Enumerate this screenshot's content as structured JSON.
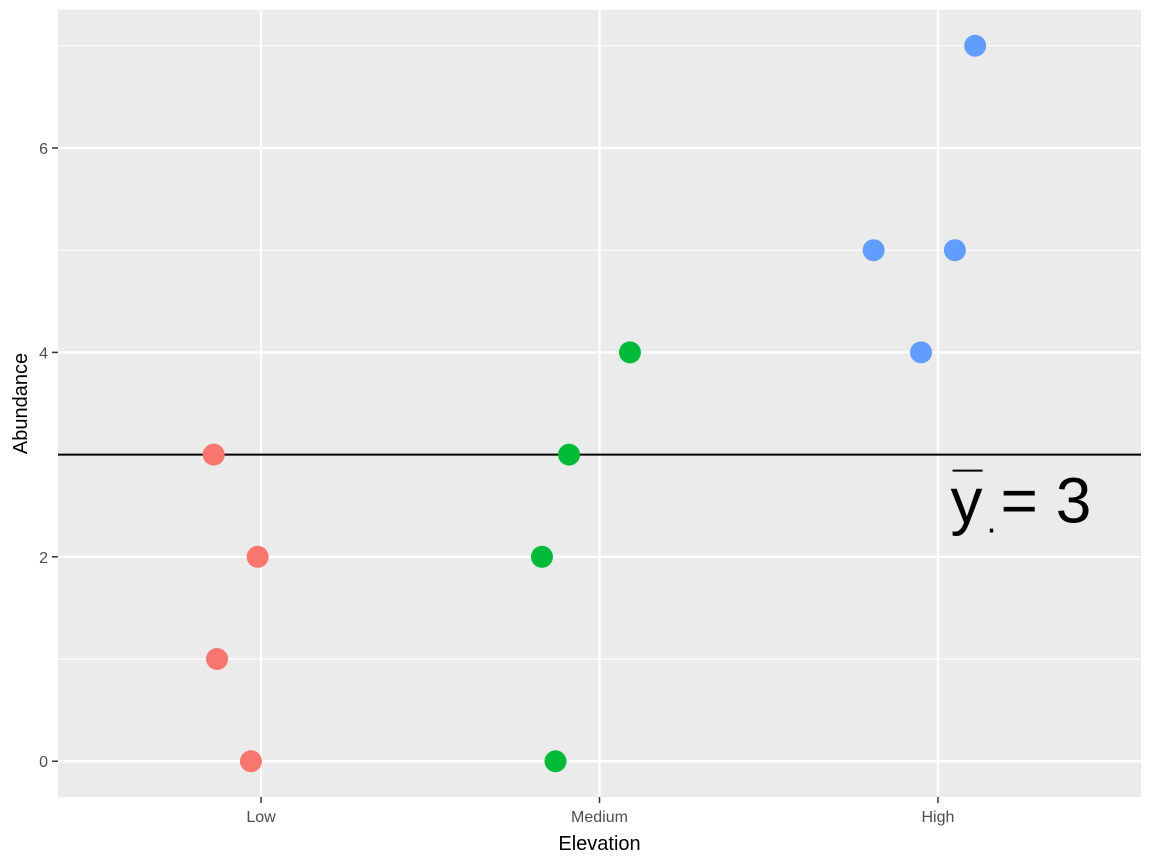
{
  "chart_data": {
    "type": "scatter",
    "title": "",
    "xlabel": "Elevation",
    "ylabel": "Abundance",
    "categories": [
      "Low",
      "Medium",
      "High"
    ],
    "xlim": [
      0.4,
      3.6
    ],
    "ylim": [
      -0.35,
      7.35
    ],
    "yticks": [
      0,
      2,
      4,
      6
    ],
    "grid": true,
    "legend": "none",
    "series": [
      {
        "color": "#F8766D",
        "points": [
          {
            "x": 0.86,
            "y": 3
          },
          {
            "x": 0.99,
            "y": 2
          },
          {
            "x": 0.87,
            "y": 1
          },
          {
            "x": 0.97,
            "y": 0
          }
        ]
      },
      {
        "color": "#00BA38",
        "points": [
          {
            "x": 2.09,
            "y": 4
          },
          {
            "x": 1.91,
            "y": 3
          },
          {
            "x": 1.83,
            "y": 2
          },
          {
            "x": 1.87,
            "y": 0
          }
        ]
      },
      {
        "color": "#619CFF",
        "points": [
          {
            "x": 3.11,
            "y": 7
          },
          {
            "x": 2.81,
            "y": 5
          },
          {
            "x": 3.05,
            "y": 5
          },
          {
            "x": 2.95,
            "y": 4
          }
        ]
      }
    ],
    "hline": {
      "y": 3,
      "color": "#000000"
    },
    "annotation": {
      "symbol": "y",
      "subscript": ".",
      "text": " = 3",
      "x": 3.25,
      "y": 2.55
    },
    "colors": {
      "panel": "#EBEBEB",
      "grid": "#FFFFFF",
      "text": "#4D4D4D",
      "title": "#000000"
    }
  }
}
